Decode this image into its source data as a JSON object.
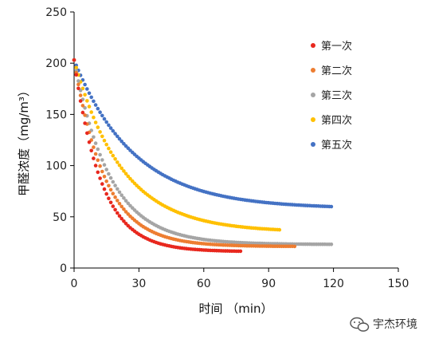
{
  "chart_data": {
    "type": "scatter",
    "xlabel": "时间 （min）",
    "ylabel": "甲醛浓度（mg/m³）",
    "xlim": [
      0,
      150
    ],
    "ylim": [
      0,
      250
    ],
    "xticks": [
      "0",
      "30",
      "60",
      "90",
      "120",
      "150"
    ],
    "yticks": [
      "0",
      "50",
      "100",
      "150",
      "200",
      "250"
    ],
    "grid": false,
    "legend_position": "right",
    "series": [
      {
        "name": "第一次",
        "color": "#e8281e",
        "start": 203,
        "end": 16,
        "k": 0.08,
        "xmax": 77
      },
      {
        "name": "第二次",
        "color": "#ed7d31",
        "start": 203,
        "end": 21,
        "k": 0.07,
        "xmax": 102
      },
      {
        "name": "第三次",
        "color": "#a5a5a5",
        "start": 203,
        "end": 23,
        "k": 0.06,
        "xmax": 119
      },
      {
        "name": "第四次",
        "color": "#ffc000",
        "start": 203,
        "end": 35,
        "k": 0.045,
        "xmax": 95
      },
      {
        "name": "第五次",
        "color": "#4472c4",
        "start": 203,
        "end": 58,
        "k": 0.036,
        "xmax": 119
      }
    ]
  },
  "watermark": {
    "text": "宇杰环境",
    "icon": "wechat-icon"
  }
}
